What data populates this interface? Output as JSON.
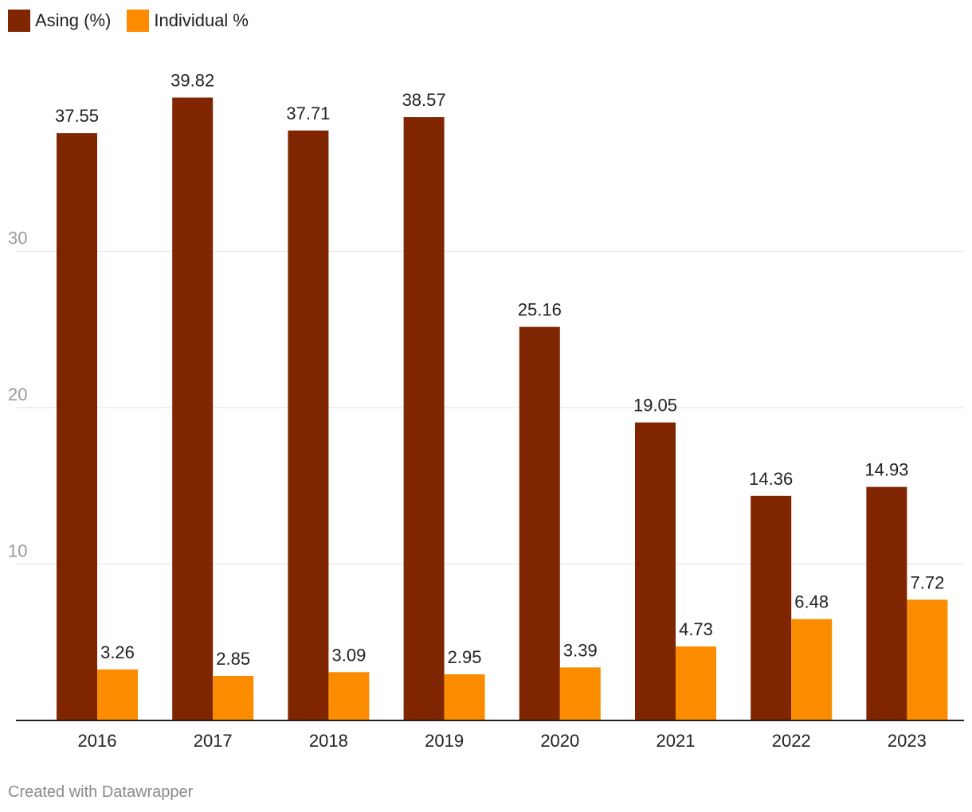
{
  "chart_data": {
    "type": "bar",
    "title": "",
    "xlabel": "",
    "ylabel": "",
    "categories": [
      "2016",
      "2017",
      "2018",
      "2019",
      "2020",
      "2021",
      "2022",
      "2023"
    ],
    "series": [
      {
        "name": "Asing (%)",
        "color": "#7f2600",
        "values": [
          37.55,
          39.82,
          37.71,
          38.57,
          25.16,
          19.05,
          14.36,
          14.93
        ],
        "labels": [
          "37.55",
          "39.82",
          "37.71",
          "38.57",
          "25.16",
          "19.05",
          "14.36",
          "14.93"
        ]
      },
      {
        "name": "Individual %",
        "color": "#fb8c00",
        "values": [
          3.26,
          2.85,
          3.09,
          2.95,
          3.39,
          4.73,
          6.48,
          7.72
        ],
        "labels": [
          "3.26",
          "2.85",
          "3.09",
          "2.95",
          "3.39",
          "4.73",
          "6.48",
          "7.72"
        ]
      }
    ],
    "yticks": [
      10,
      20,
      30
    ],
    "ytick_labels": [
      "10",
      "20",
      "30"
    ],
    "ylim": [
      0,
      45
    ],
    "grid": true,
    "legend": "top-left"
  },
  "footer": {
    "credit": "Created with Datawrapper"
  }
}
